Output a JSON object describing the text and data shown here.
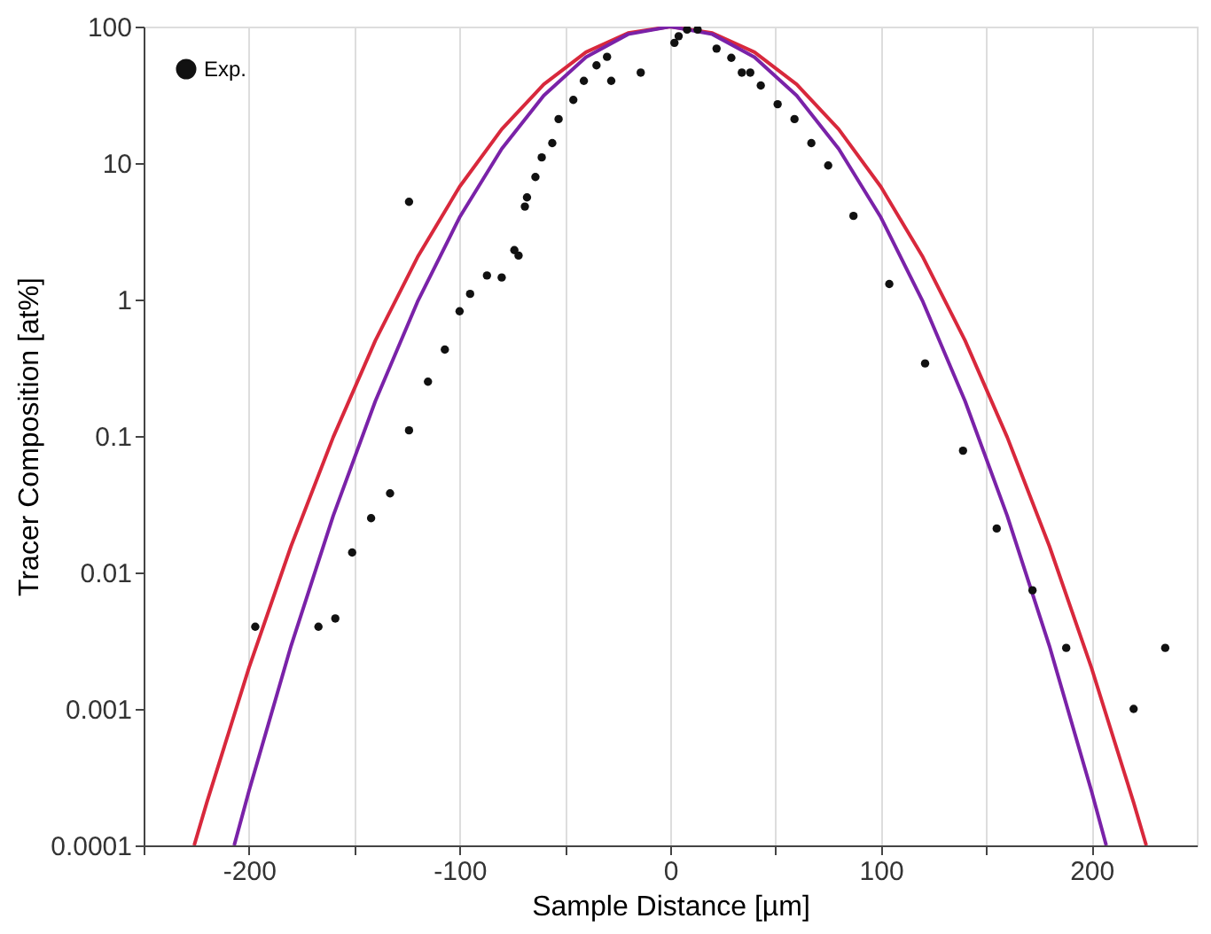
{
  "chart_data": {
    "type": "line",
    "xlabel": "Sample Distance [µm]",
    "ylabel": "Tracer Composition [at%]",
    "xlim": [
      -250,
      250
    ],
    "ylim": [
      0.0001,
      100
    ],
    "log": "y",
    "grid": "x",
    "legend": "top left",
    "xticks": [
      {
        "value": -250,
        "label": null
      },
      -200,
      {
        "value": -150,
        "label": null
      },
      -100,
      {
        "value": -50,
        "label": null
      },
      0,
      {
        "value": 50,
        "label": null
      },
      100,
      {
        "value": 150,
        "label": null
      },
      200
    ],
    "yticks": [
      0.0001,
      0.001,
      0.01,
      0.1,
      1,
      10,
      100
    ],
    "series": [
      {
        "color": "#d8283c",
        "line_style": "solid",
        "marker": "none",
        "x": [
          -226,
          -220,
          -200,
          -180,
          -160,
          -140,
          -120,
          -100,
          -80,
          -60,
          -40,
          -20,
          0,
          20,
          40,
          60,
          80,
          100,
          120,
          140,
          160,
          180,
          200,
          220,
          226
        ],
        "values": [
          0.0001,
          0.000206,
          0.002,
          0.0156,
          0.098,
          0.5,
          2.04,
          6.7,
          17.7,
          37.8,
          64.9,
          89.8,
          100,
          89.8,
          64.9,
          37.8,
          17.7,
          6.7,
          2.04,
          0.5,
          0.098,
          0.0156,
          0.002,
          0.000206,
          0.0001
        ]
      },
      {
        "color": "#7a22a8",
        "line_style": "solid",
        "marker": "none",
        "x": [
          -207,
          -200,
          -180,
          -160,
          -140,
          -120,
          -100,
          -80,
          -60,
          -40,
          -20,
          0,
          20,
          40,
          60,
          80,
          100,
          120,
          140,
          160,
          180,
          200,
          207
        ],
        "values": [
          0.0001,
          0.00025,
          0.0029,
          0.026,
          0.18,
          0.96,
          4.0,
          12.7,
          31.3,
          59.7,
          87.9,
          100,
          87.9,
          59.7,
          31.3,
          12.7,
          4.0,
          0.96,
          0.18,
          0.026,
          0.0029,
          0.00025,
          0.0001
        ]
      },
      {
        "type": "scatter",
        "name": "Exp.",
        "color": "#111111",
        "marker": "circle",
        "x": [
          -197,
          -167,
          -159,
          -151,
          -142,
          -133,
          -124,
          -124,
          -115,
          -107,
          -100,
          -95,
          -87,
          -80,
          -74,
          -72,
          -69,
          -68,
          -64,
          -61,
          -56,
          -53,
          -46,
          -41,
          -35,
          -30,
          -28,
          -14,
          2,
          4,
          8,
          13,
          22,
          29,
          34,
          38,
          43,
          51,
          59,
          67,
          75,
          87,
          104,
          121,
          139,
          155,
          172,
          188,
          220,
          235
        ],
        "values": [
          0.004,
          0.004,
          0.0046,
          0.014,
          0.025,
          0.038,
          5.2,
          0.11,
          0.25,
          0.43,
          0.82,
          1.1,
          1.5,
          1.45,
          2.3,
          2.1,
          4.8,
          5.6,
          7.9,
          11,
          14,
          21,
          29,
          40,
          52,
          60,
          40,
          46,
          76,
          85,
          95,
          95,
          69,
          59,
          46,
          46,
          37,
          27,
          21,
          14,
          9.6,
          4.1,
          1.3,
          0.34,
          0.078,
          0.021,
          0.0074,
          0.0028,
          0.001,
          0.0028
        ]
      }
    ]
  }
}
